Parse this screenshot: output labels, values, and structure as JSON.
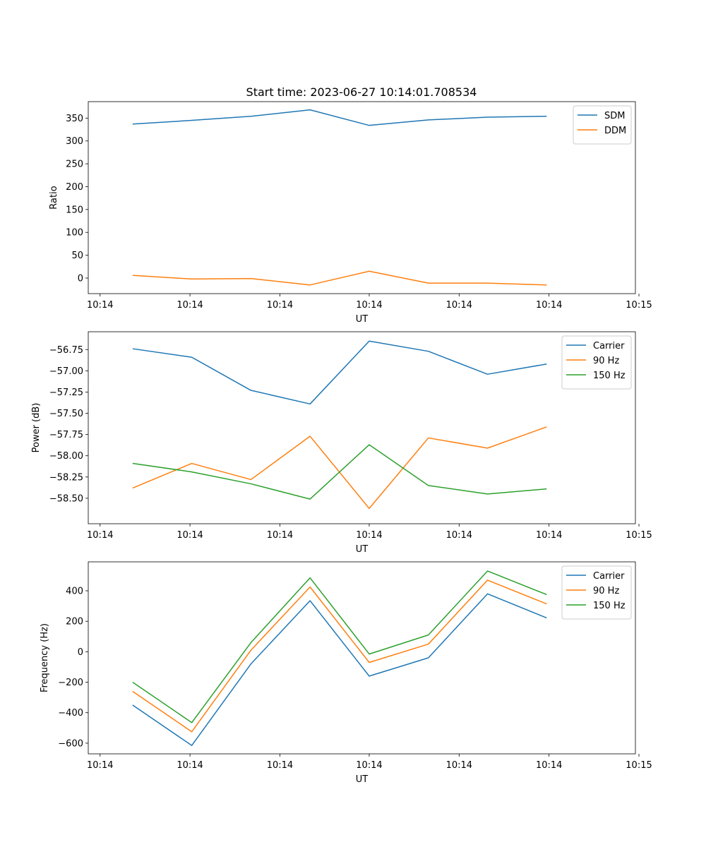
{
  "figure": {
    "title": "Start time: 2023-06-27 10:14:01.708534"
  },
  "colors": {
    "blue": "#1f77b4",
    "orange": "#ff7f0e",
    "green": "#2ca02c"
  },
  "chart_data": [
    {
      "type": "line",
      "title": "Start time: 2023-06-27 10:14:01.708534",
      "xlabel": "UT",
      "ylabel": "Ratio",
      "x": [
        1,
        2,
        3,
        4,
        5,
        6,
        7,
        8
      ],
      "xlim": [
        0.25,
        9.5
      ],
      "xticks": [
        0.45,
        1.97,
        3.49,
        5.0,
        6.52,
        8.04,
        9.56
      ],
      "xtick_labels": [
        "10:14",
        "10:14",
        "10:14",
        "10:14",
        "10:14",
        "10:14",
        "10:15"
      ],
      "ylim": [
        -34,
        386
      ],
      "yticks": [
        0,
        50,
        100,
        150,
        200,
        250,
        300,
        350
      ],
      "ytick_labels": [
        "0",
        "50",
        "100",
        "150",
        "200",
        "250",
        "300",
        "350"
      ],
      "legend": "upper right",
      "grid": false,
      "series": [
        {
          "name": "SDM",
          "color": "#1f77b4",
          "values": [
            337,
            345,
            354,
            368,
            334,
            346,
            352,
            354
          ]
        },
        {
          "name": "DDM",
          "color": "#ff7f0e",
          "values": [
            6,
            -2,
            -1,
            -15,
            15,
            -11,
            -11,
            -15
          ]
        }
      ]
    },
    {
      "type": "line",
      "title": "",
      "xlabel": "UT",
      "ylabel": "Power (dB)",
      "x": [
        1,
        2,
        3,
        4,
        5,
        6,
        7,
        8
      ],
      "xlim": [
        0.25,
        9.5
      ],
      "xticks": [
        0.45,
        1.97,
        3.49,
        5.0,
        6.52,
        8.04,
        9.56
      ],
      "xtick_labels": [
        "10:14",
        "10:14",
        "10:14",
        "10:14",
        "10:14",
        "10:14",
        "10:15"
      ],
      "ylim": [
        -58.8,
        -56.54
      ],
      "yticks": [
        -56.75,
        -57.0,
        -57.25,
        -57.5,
        -57.75,
        -58.0,
        -58.25,
        -58.5
      ],
      "ytick_labels": [
        "−56.75",
        "−57.00",
        "−57.25",
        "−57.50",
        "−57.75",
        "−58.00",
        "−58.25",
        "−58.50"
      ],
      "legend": "upper right",
      "grid": false,
      "series": [
        {
          "name": "Carrier",
          "color": "#1f77b4",
          "values": [
            -56.74,
            -56.84,
            -57.23,
            -57.39,
            -56.65,
            -56.77,
            -57.04,
            -56.92
          ]
        },
        {
          "name": "90 Hz",
          "color": "#ff7f0e",
          "values": [
            -58.38,
            -58.09,
            -58.28,
            -57.77,
            -58.62,
            -57.79,
            -57.91,
            -57.66
          ]
        },
        {
          "name": "150 Hz",
          "color": "#2ca02c",
          "values": [
            -58.09,
            -58.19,
            -58.33,
            -58.51,
            -57.87,
            -58.35,
            -58.45,
            -58.39
          ]
        }
      ]
    },
    {
      "type": "line",
      "title": "",
      "xlabel": "UT",
      "ylabel": "Frequency (Hz)",
      "x": [
        1,
        2,
        3,
        4,
        5,
        6,
        7,
        8
      ],
      "xlim": [
        0.25,
        9.5
      ],
      "xticks": [
        0.45,
        1.97,
        3.49,
        5.0,
        6.52,
        8.04,
        9.56
      ],
      "xtick_labels": [
        "10:14",
        "10:14",
        "10:14",
        "10:14",
        "10:14",
        "10:14",
        "10:15"
      ],
      "ylim": [
        -670,
        590
      ],
      "yticks": [
        -600,
        -400,
        -200,
        0,
        200,
        400
      ],
      "ytick_labels": [
        "−600",
        "−400",
        "−200",
        "0",
        "200",
        "400"
      ],
      "legend": "upper right",
      "grid": false,
      "series": [
        {
          "name": "Carrier",
          "color": "#1f77b4",
          "values": [
            -350,
            -615,
            -80,
            335,
            -160,
            -40,
            380,
            222
          ]
        },
        {
          "name": "90 Hz",
          "color": "#ff7f0e",
          "values": [
            -260,
            -525,
            10,
            425,
            -70,
            50,
            470,
            314
          ]
        },
        {
          "name": "150 Hz",
          "color": "#2ca02c",
          "values": [
            -200,
            -465,
            60,
            485,
            -15,
            110,
            530,
            375
          ]
        }
      ]
    }
  ]
}
